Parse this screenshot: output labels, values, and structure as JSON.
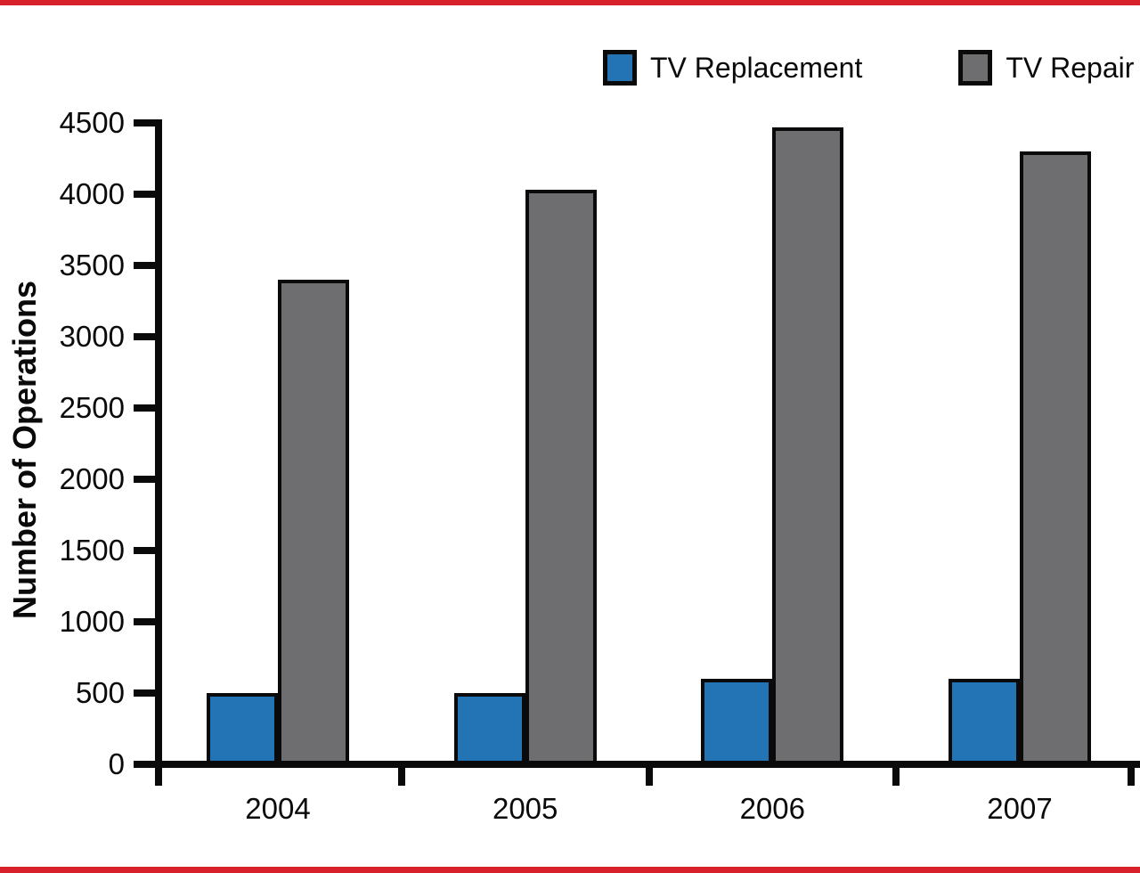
{
  "page": {
    "background_color": "#ffffff",
    "accent_color": "#d7202a"
  },
  "chart_data": {
    "type": "bar",
    "title": "",
    "categories": [
      "2004",
      "2005",
      "2006",
      "2007"
    ],
    "series": [
      {
        "name": "TV Replacement",
        "color": "#2274b5",
        "values": [
          500,
          500,
          600,
          600
        ]
      },
      {
        "name": "TV Repair",
        "color": "#6e6e70",
        "values": [
          3400,
          4030,
          4470,
          4300
        ]
      }
    ],
    "xlabel": "",
    "ylabel": "Number of Operations",
    "ylim": [
      0,
      4500
    ],
    "yticks": [
      0,
      500,
      1000,
      1500,
      2000,
      2500,
      3000,
      3500,
      4000,
      4500
    ],
    "grid": false,
    "legend_position": "top-right",
    "axis_color": "#0a0a0a",
    "bar_border_color": "#0a0a0a"
  }
}
